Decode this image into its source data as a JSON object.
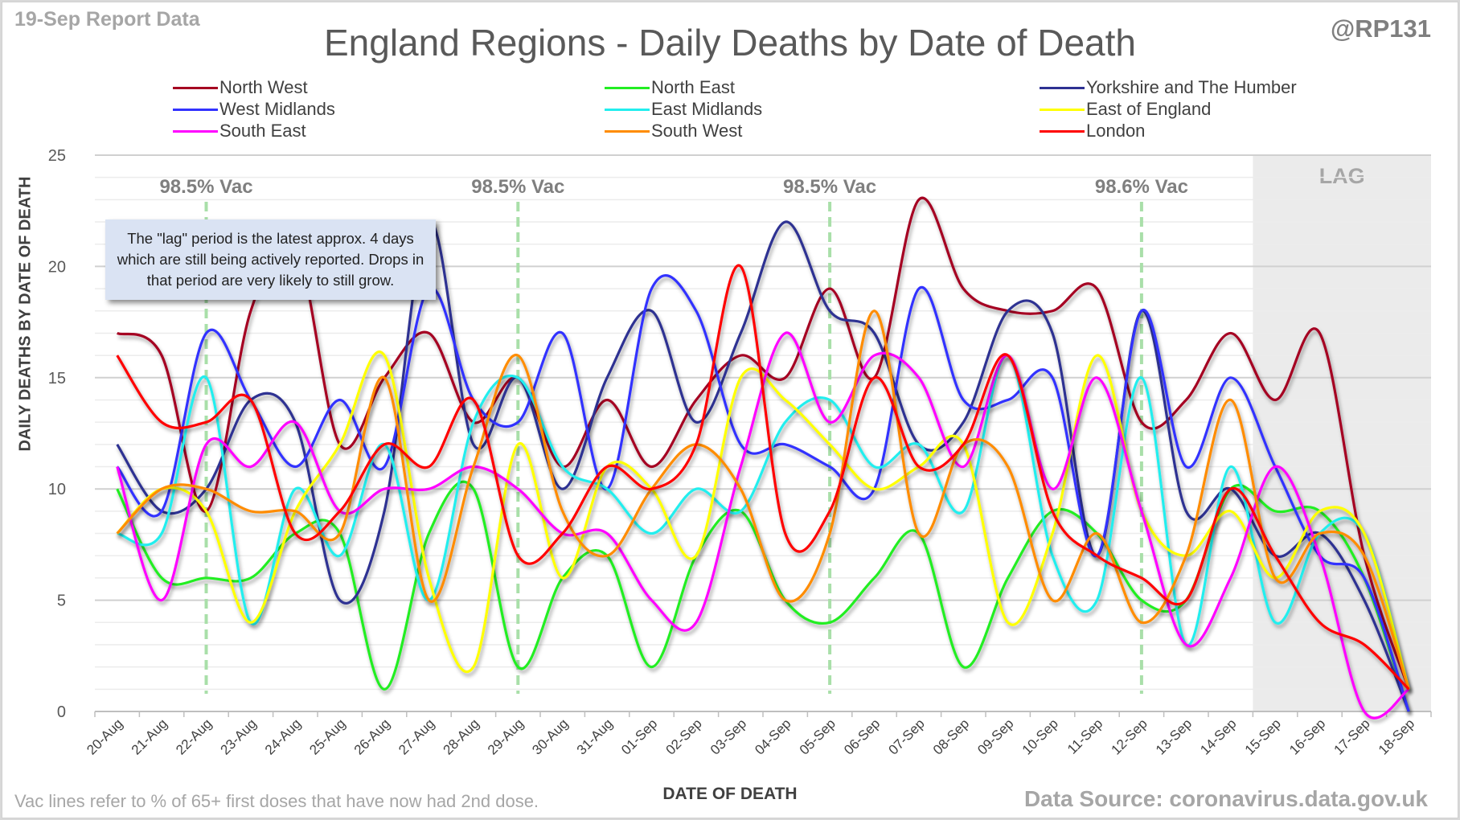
{
  "header": {
    "report_date": "19-Sep Report Data",
    "handle": "@RP131"
  },
  "footer": {
    "note": "Vac lines refer to % of 65+ first doses that have now had 2nd dose.",
    "source": "Data Source: coronavirus.data.gov.uk"
  },
  "tooltip": {
    "text": "The \"lag\" period is the latest approx. 4 days which are still being actively reported. Drops in that period are very likely to still grow."
  },
  "chart_data": {
    "type": "line",
    "title": "England Regions - Daily Deaths by Date of Death",
    "xlabel": "DATE OF DEATH",
    "ylabel": "DAILY DEATHS BY DATE OF DEATH",
    "ylim": [
      0,
      25
    ],
    "yticks": [
      0,
      5,
      10,
      15,
      20,
      25
    ],
    "grid": true,
    "smoothed": true,
    "legend_position": "top",
    "categories": [
      "20-Aug",
      "21-Aug",
      "22-Aug",
      "23-Aug",
      "24-Aug",
      "25-Aug",
      "26-Aug",
      "27-Aug",
      "28-Aug",
      "29-Aug",
      "30-Aug",
      "31-Aug",
      "01-Sep",
      "02-Sep",
      "03-Sep",
      "04-Sep",
      "05-Sep",
      "06-Sep",
      "07-Sep",
      "08-Sep",
      "09-Sep",
      "10-Sep",
      "11-Sep",
      "12-Sep",
      "13-Sep",
      "14-Sep",
      "15-Sep",
      "16-Sep",
      "17-Sep",
      "18-Sep"
    ],
    "series": [
      {
        "name": "North West",
        "color": "#a50021",
        "values": [
          17,
          16,
          9,
          18,
          21,
          12,
          15,
          17,
          13,
          15,
          11,
          14,
          11,
          14,
          16,
          15,
          19,
          15,
          23,
          19,
          18,
          18,
          19,
          13,
          14,
          17,
          14,
          17,
          7,
          1
        ]
      },
      {
        "name": "North East",
        "color": "#22ee22",
        "values": [
          10,
          6,
          6,
          6,
          8,
          8,
          1,
          8,
          10,
          2,
          6,
          7,
          2,
          7,
          9,
          5,
          4,
          6,
          8,
          2,
          6,
          9,
          8,
          5,
          5,
          10,
          9,
          9,
          6,
          0
        ]
      },
      {
        "name": "Yorkshire and The Humber",
        "color": "#2e3192",
        "values": [
          12,
          9,
          10,
          14,
          13,
          5,
          9,
          22,
          12,
          15,
          10,
          15,
          18,
          13,
          17,
          22,
          18,
          17,
          12,
          13,
          18,
          17,
          7,
          18,
          9,
          10,
          7,
          8,
          5,
          0
        ]
      },
      {
        "name": "West Midlands",
        "color": "#3333ff",
        "values": [
          11,
          9,
          17,
          14,
          11,
          14,
          11,
          19,
          14,
          13,
          17,
          10,
          19,
          18,
          12,
          12,
          11,
          10,
          19,
          14,
          14,
          15,
          7,
          18,
          11,
          15,
          11,
          7,
          6,
          0
        ]
      },
      {
        "name": "East Midlands",
        "color": "#22eeee",
        "values": [
          8,
          8,
          15,
          4,
          10,
          7,
          12,
          5,
          13,
          15,
          11,
          10,
          8,
          10,
          9,
          13,
          14,
          11,
          12,
          9,
          16,
          7,
          5,
          15,
          3,
          11,
          4,
          8,
          8,
          1
        ]
      },
      {
        "name": "East of England",
        "color": "#ffff00",
        "values": [
          8,
          10,
          9,
          4,
          9,
          12,
          16,
          6,
          2,
          12,
          6,
          11,
          10,
          7,
          15,
          14,
          12,
          10,
          11,
          12,
          4,
          8,
          16,
          9,
          7,
          9,
          6,
          9,
          8,
          1
        ]
      },
      {
        "name": "South East",
        "color": "#ff00ff",
        "values": [
          11,
          5,
          12,
          11,
          13,
          9,
          10,
          10,
          11,
          10,
          8,
          8,
          5,
          4,
          11,
          17,
          13,
          16,
          15,
          11,
          16,
          10,
          15,
          9,
          3,
          6,
          11,
          7,
          0,
          1
        ]
      },
      {
        "name": "South West",
        "color": "#ff8c00",
        "values": [
          8,
          10,
          10,
          9,
          9,
          8,
          15,
          5,
          11,
          16,
          9,
          7,
          10,
          12,
          10,
          5,
          8,
          18,
          8,
          12,
          11,
          5,
          8,
          4,
          7,
          14,
          6,
          8,
          7,
          1
        ]
      },
      {
        "name": "London",
        "color": "#ff0000",
        "values": [
          16,
          13,
          13,
          14,
          8,
          9,
          12,
          11,
          14,
          7,
          8,
          11,
          10,
          12,
          20,
          8,
          9,
          15,
          11,
          12,
          16,
          9,
          7,
          6,
          5,
          10,
          7,
          4,
          3,
          1
        ]
      }
    ],
    "annotations": {
      "vac_lines": [
        {
          "category": "22-Aug",
          "label": "98.5% Vac"
        },
        {
          "category": "29-Aug",
          "label": "98.5% Vac"
        },
        {
          "category": "05-Sep",
          "label": "98.5% Vac"
        },
        {
          "category": "12-Sep",
          "label": "98.6% Vac"
        }
      ],
      "lag_region": {
        "from_after": "14-Sep",
        "to": "18-Sep",
        "label": "LAG"
      }
    }
  }
}
